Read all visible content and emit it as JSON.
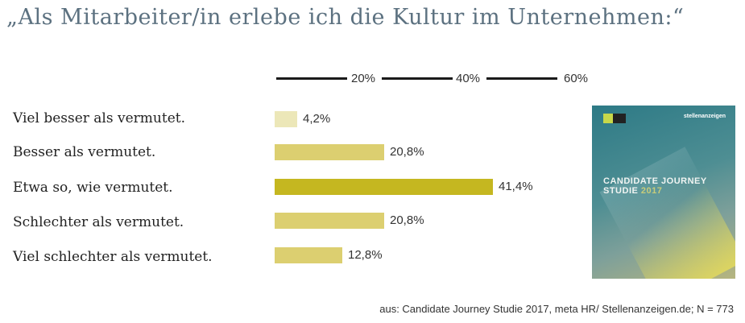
{
  "title": "„Als Mitarbeiter/in erlebe ich die Kultur im Unternehmen:“",
  "source": "aus: Candidate Journey Studie 2017, meta HR/ Stellenanzeigen.de; N = 773",
  "cover": {
    "brand": "stellenanzeigen",
    "line1": "CANDIDATE JOURNEY",
    "line2": "STUDIE",
    "year": "2017"
  },
  "colors": {
    "bar_light": "#ece7b8",
    "bar_mid": "#dccf70",
    "bar_dark": "#c5b720",
    "title": "#5c7180"
  },
  "chart_data": {
    "type": "bar",
    "orientation": "horizontal",
    "title": "„Als Mitarbeiter/in erlebe ich die Kultur im Unternehmen:“",
    "categories": [
      "Viel besser als vermutet.",
      "Besser als vermutet.",
      "Etwa so, wie vermutet.",
      "Schlechter als vermutet.",
      "Viel schlechter als vermutet."
    ],
    "values": [
      4.2,
      20.8,
      41.4,
      20.8,
      12.8
    ],
    "value_labels": [
      "4,2%",
      "20,8%",
      "41,4%",
      "20,8%",
      "12,8%"
    ],
    "xlim": [
      0,
      60
    ],
    "ticks": [
      "20%",
      "40%",
      "60%"
    ],
    "grid": false,
    "legend": "none"
  }
}
